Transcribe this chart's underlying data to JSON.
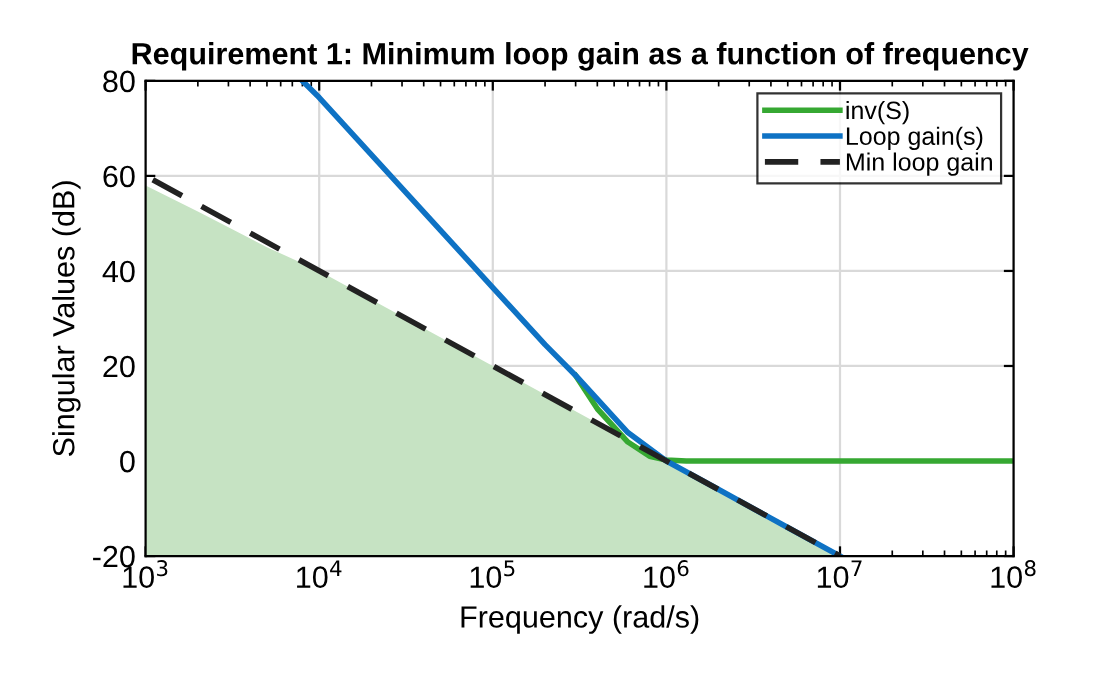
{
  "chart_data": {
    "type": "line",
    "title": "Requirement 1: Minimum loop gain as a function of frequency",
    "xlabel": "Frequency (rad/s)",
    "ylabel": "Singular Values (dB)",
    "log": "x",
    "xlim": [
      1000,
      100000000
    ],
    "xticks": [
      {
        "value": 1000,
        "label": "10$^{3}$"
      },
      {
        "value": 10000,
        "label": "10$^{4}$"
      },
      {
        "value": 100000,
        "label": "10$^{5}$"
      },
      {
        "value": 1000000,
        "label": "10$^{6}$"
      },
      {
        "value": 10000000,
        "label": "10$^{7}$"
      },
      {
        "value": 100000000,
        "label": "10$^{8}$"
      }
    ],
    "ylim": [
      -20,
      80
    ],
    "yticks": [
      -20,
      0,
      20,
      40,
      60,
      80
    ],
    "grid": true,
    "legend": "top right",
    "series": [
      {
        "type": "area",
        "color": "#c6e3c3",
        "x": [
          1000,
          1000,
          2000,
          5000,
          10000,
          100000,
          1000000,
          10000000
        ],
        "values": [
          -20,
          58,
          52.5,
          45,
          40,
          20,
          0,
          -20
        ]
      },
      {
        "name": "inv(S)",
        "color": "#36a832",
        "line_style": "solid",
        "x": [
          300000,
          400000,
          600000,
          800000,
          1000000,
          1300000,
          10000000,
          100000000
        ],
        "values": [
          18,
          11,
          4,
          1,
          0.2,
          0,
          0,
          0
        ]
      },
      {
        "name": "Loop gain(s)",
        "color": "#0e72c4",
        "line_style": "solid",
        "x": [
          8000,
          10000,
          100000,
          200000,
          300000,
          400000,
          600000,
          1000000,
          2000000,
          5000000,
          10000000
        ],
        "values": [
          80,
          76.5,
          36.5,
          24.5,
          18,
          13,
          6,
          0,
          -6,
          -14,
          -20
        ]
      },
      {
        "name": "Min loop gain",
        "color": "#222222",
        "line_style": "dashed",
        "x": [
          1100,
          10000000
        ],
        "values": [
          59.2,
          -20
        ]
      }
    ]
  }
}
